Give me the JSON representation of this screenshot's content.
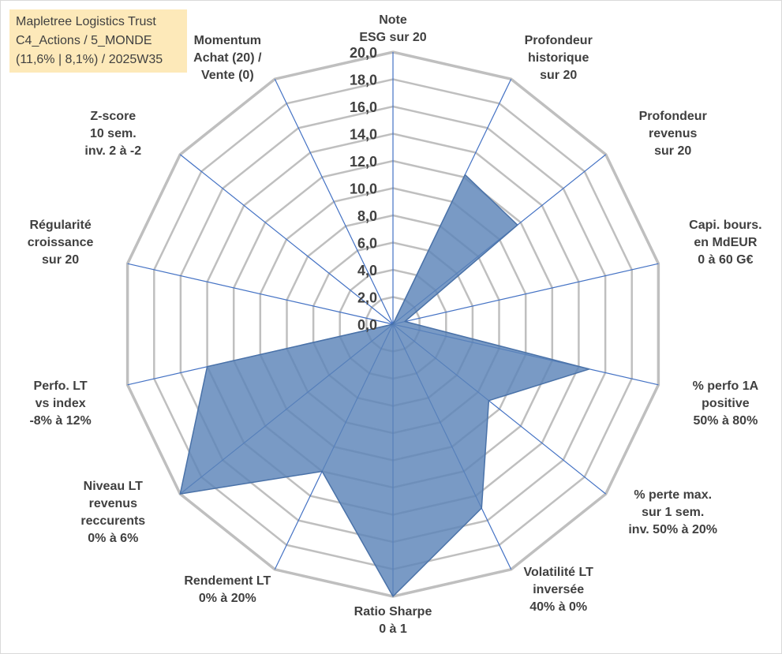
{
  "title_lines": [
    "Mapletree Logistics Trust",
    "C4_Actions / 5_MONDE",
    "(11,6% | 8,1%) / 2025W35"
  ],
  "colors": {
    "grid": "#bfbfbf",
    "spoke": "#4472c4",
    "fill": "#5b84b8",
    "fill_stroke": "#4a72a8",
    "label": "#404040",
    "title_bg": "#fde9b9"
  },
  "chart_data": {
    "type": "radar",
    "range": [
      0,
      20
    ],
    "tick_step": 2,
    "tick_labels": [
      "0,0",
      "2,0",
      "4,0",
      "6,0",
      "8,0",
      "10,0",
      "12,0",
      "14,0",
      "16,0",
      "18,0",
      "20,0"
    ],
    "axes": [
      {
        "label": [
          "Note",
          "ESG sur 20"
        ],
        "value": 0
      },
      {
        "label": [
          "Profondeur",
          "historique",
          "sur 20"
        ],
        "value": 12.2
      },
      {
        "label": [
          "Profondeur",
          "revenus",
          "sur 20"
        ],
        "value": 11.7
      },
      {
        "label": [
          "Capi. bours.",
          "en MdEUR",
          "0 à 60 G€"
        ],
        "value": 0.9
      },
      {
        "label": [
          "% perfo 1A",
          "positive",
          "50% à 80%"
        ],
        "value": 14.8
      },
      {
        "label": [
          "% perte max.",
          "sur 1 sem.",
          "inv. 50% à 20%"
        ],
        "value": 9.0
      },
      {
        "label": [
          "Volatilité LT",
          "inversée",
          "40% à 0%"
        ],
        "value": 15.0
      },
      {
        "label": [
          "Ratio Sharpe",
          "0 à 1"
        ],
        "value": 20.0
      },
      {
        "label": [
          "Rendement LT",
          "0% à 20%"
        ],
        "value": 12.0
      },
      {
        "label": [
          "Niveau LT",
          "revenus",
          "reccurents",
          "0% à 6%"
        ],
        "value": 20.0
      },
      {
        "label": [
          "Perfo. LT",
          "vs index",
          "-8% à 12%"
        ],
        "value": 14.0
      },
      {
        "label": [
          "Régularité",
          "croissance",
          "sur 20"
        ],
        "value": 0
      },
      {
        "label": [
          "Z-score",
          "10 sem.",
          "inv. 2 à -2"
        ],
        "value": 0
      },
      {
        "label": [
          "Momentum",
          "Achat (20) /",
          "Vente (0)"
        ],
        "value": 0
      }
    ]
  }
}
